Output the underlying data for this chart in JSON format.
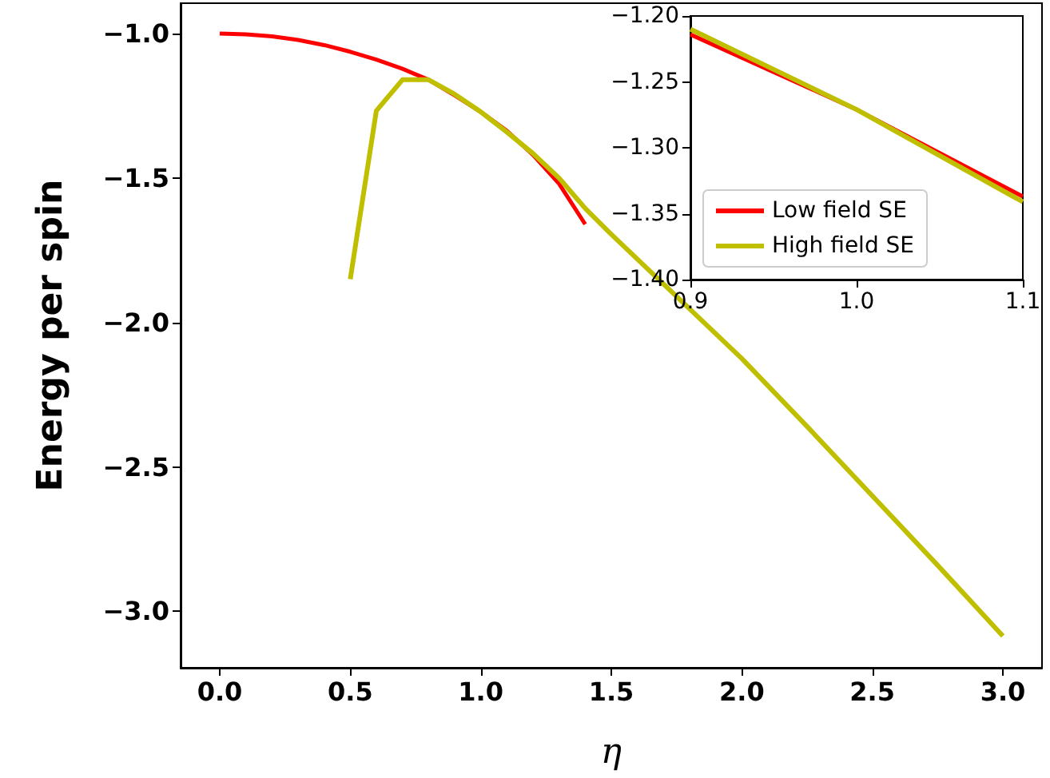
{
  "chart_data": [
    {
      "type": "line",
      "xlabel": "η",
      "ylabel": "Energy per spin",
      "xlim": [
        -0.15,
        3.15
      ],
      "ylim": [
        -3.195,
        -0.895
      ],
      "xticks": [
        {
          "value": 0,
          "label": "0.0"
        },
        {
          "value": 0.5,
          "label": "0.5"
        },
        {
          "value": 1,
          "label": "1.0"
        },
        {
          "value": 1.5,
          "label": "1.5"
        },
        {
          "value": 2,
          "label": "2.0"
        },
        {
          "value": 2.5,
          "label": "2.5"
        },
        {
          "value": 3,
          "label": "3.0"
        }
      ],
      "yticks": [
        {
          "value": -3,
          "label": "−3.0"
        },
        {
          "value": -2.5,
          "label": "−2.5"
        },
        {
          "value": -2,
          "label": "−2.0"
        },
        {
          "value": -1.5,
          "label": "−1.5"
        },
        {
          "value": -1,
          "label": "−1.0"
        }
      ],
      "grid": false,
      "legend": false,
      "marker": "none",
      "line_style": "solid",
      "series": [
        {
          "color": "#ff0000",
          "x": [
            0,
            0.1,
            0.2,
            0.3,
            0.4,
            0.5,
            0.6,
            0.7,
            0.8,
            0.9,
            1.0,
            1.1,
            1.2,
            1.3,
            1.4
          ],
          "values": [
            -1.0,
            -1.003,
            -1.01,
            -1.022,
            -1.04,
            -1.063,
            -1.09,
            -1.122,
            -1.16,
            -1.214,
            -1.271,
            -1.337,
            -1.42,
            -1.52,
            -1.66
          ]
        },
        {
          "color": "#bfbf00",
          "x": [
            0.5,
            0.6,
            0.7,
            0.8,
            0.9,
            1.0,
            1.1,
            1.2,
            1.3,
            1.4,
            1.5,
            1.75,
            2.0,
            2.25,
            2.5,
            2.75,
            3.0
          ],
          "values": [
            -1.85,
            -1.267,
            -1.16,
            -1.16,
            -1.21,
            -1.271,
            -1.341,
            -1.415,
            -1.5,
            -1.605,
            -1.695,
            -1.91,
            -2.125,
            -2.36,
            -2.6,
            -2.84,
            -3.085
          ]
        }
      ]
    },
    {
      "type": "line",
      "xlim": [
        0.9,
        1.1
      ],
      "ylim": [
        -1.4,
        -1.2
      ],
      "xticks": [
        {
          "value": 0.9,
          "label": "0.9"
        },
        {
          "value": 1.0,
          "label": "1.0"
        },
        {
          "value": 1.1,
          "label": "1.1"
        }
      ],
      "yticks": [
        {
          "value": -1.4,
          "label": "−1.40"
        },
        {
          "value": -1.35,
          "label": "−1.35"
        },
        {
          "value": -1.3,
          "label": "−1.30"
        },
        {
          "value": -1.25,
          "label": "−1.25"
        },
        {
          "value": -1.2,
          "label": "−1.20"
        }
      ],
      "grid": false,
      "legend": "bottom left",
      "marker": "none",
      "line_style": "solid",
      "series": [
        {
          "name": "Low field SE",
          "color": "#ff0000",
          "x": [
            0.9,
            1.0,
            1.1
          ],
          "values": [
            -1.214,
            -1.271,
            -1.337
          ]
        },
        {
          "name": "High field SE",
          "color": "#bfbf00",
          "x": [
            0.9,
            1.0,
            1.1
          ],
          "values": [
            -1.21,
            -1.271,
            -1.341
          ]
        }
      ]
    }
  ]
}
